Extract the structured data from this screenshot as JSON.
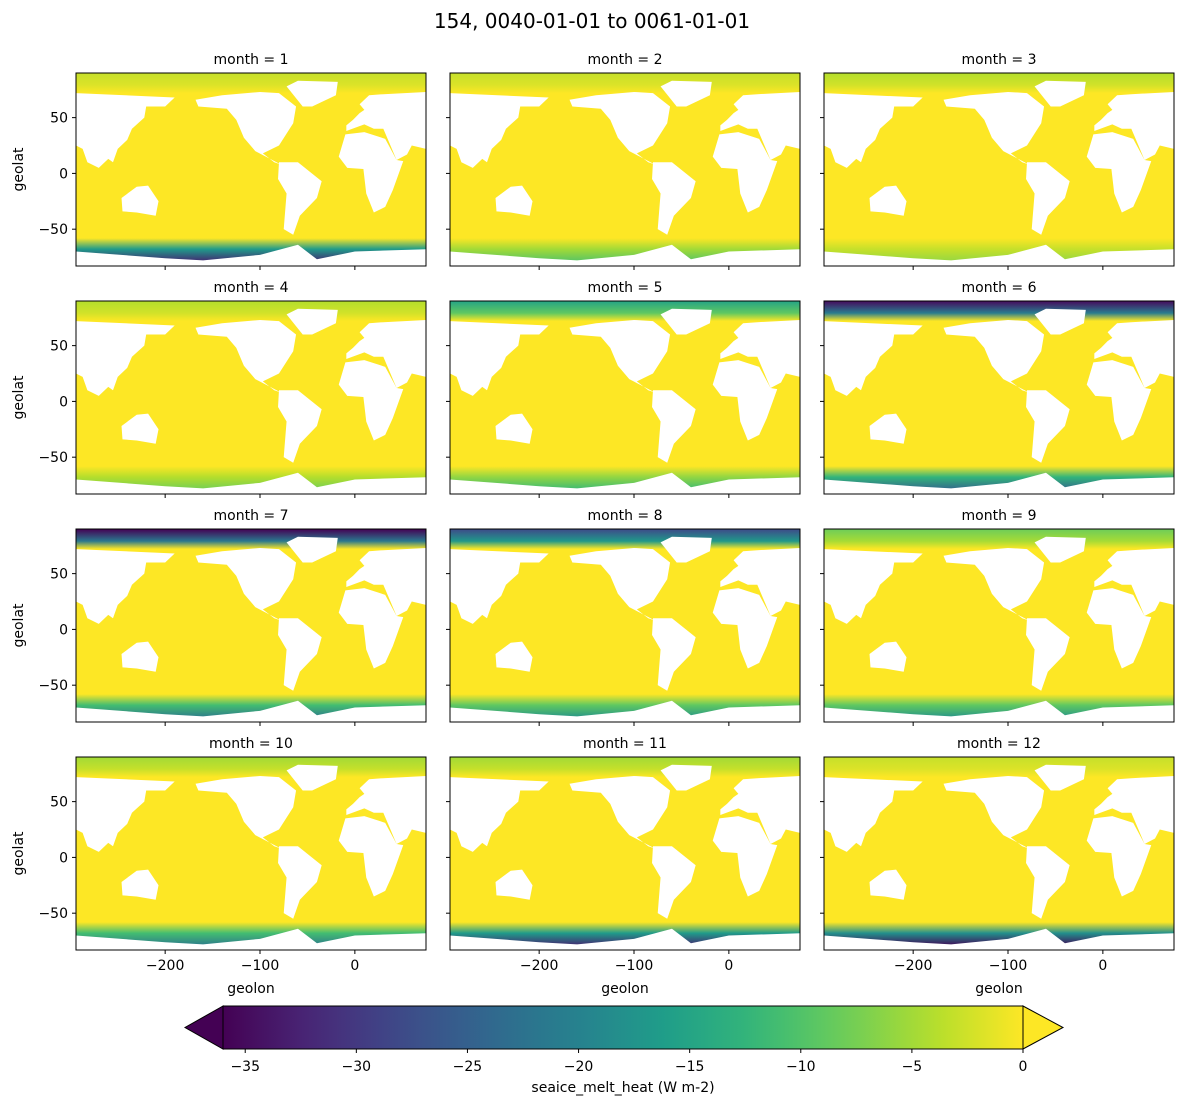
{
  "chart_data": {
    "type": "heatmap",
    "title": "154, 0040-01-01 to 0061-01-01",
    "xlabel": "geolon",
    "ylabel": "geolat",
    "xlim": [
      -294,
      75
    ],
    "ylim": [
      -83,
      90
    ],
    "xticks": [
      -200,
      -100,
      0
    ],
    "yticks": [
      -50,
      0,
      50
    ],
    "xtick_labels": [
      "−200",
      "−100",
      "0"
    ],
    "ytick_labels": [
      "−50",
      "0",
      "50"
    ],
    "colormap": "viridis",
    "colorbar": {
      "label": "seaice_melt_heat (W m-2)",
      "range": [
        -36,
        0
      ],
      "extend": "both",
      "ticks": [
        -35,
        -30,
        -25,
        -20,
        -15,
        -10,
        -5,
        0
      ],
      "tick_labels": [
        "−35",
        "−30",
        "−25",
        "−20",
        "−15",
        "−10",
        "−5",
        "0"
      ]
    },
    "panels": [
      {
        "title": "month = 1",
        "arctic_min": -3,
        "antarctic_min": -33
      },
      {
        "title": "month = 2",
        "arctic_min": -3,
        "antarctic_min": -10
      },
      {
        "title": "month = 3",
        "arctic_min": -4,
        "antarctic_min": -6
      },
      {
        "title": "month = 4",
        "arctic_min": -4,
        "antarctic_min": -8
      },
      {
        "title": "month = 5",
        "arctic_min": -15,
        "antarctic_min": -12
      },
      {
        "title": "month = 6",
        "arctic_min": -35,
        "antarctic_min": -25
      },
      {
        "title": "month = 7",
        "arctic_min": -36,
        "antarctic_min": -22
      },
      {
        "title": "month = 8",
        "arctic_min": -28,
        "antarctic_min": -18
      },
      {
        "title": "month = 9",
        "arctic_min": -8,
        "antarctic_min": -18
      },
      {
        "title": "month = 10",
        "arctic_min": -5,
        "antarctic_min": -22
      },
      {
        "title": "month = 11",
        "arctic_min": -5,
        "antarctic_min": -33
      },
      {
        "title": "month = 12",
        "arctic_min": -3,
        "antarctic_min": -36
      }
    ]
  }
}
